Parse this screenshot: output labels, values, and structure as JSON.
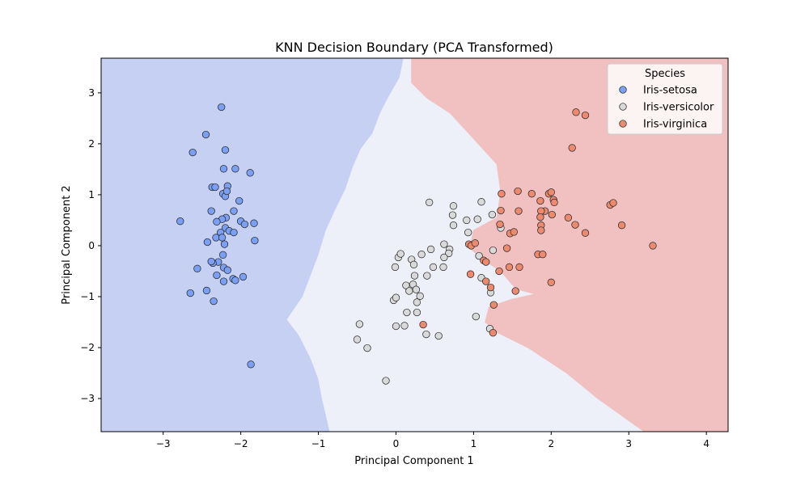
{
  "chart_data": {
    "type": "scatter",
    "title": "KNN Decision Boundary (PCA Transformed)",
    "xlabel": "Principal Component 1",
    "ylabel": "Principal Component 2",
    "xlim": [
      -3.8,
      4.28
    ],
    "ylim": [
      -3.65,
      3.68
    ],
    "xticks": [
      -3,
      -2,
      -1,
      0,
      1,
      2,
      3,
      4
    ],
    "yticks": [
      -3,
      -2,
      -1,
      0,
      1,
      2,
      3
    ],
    "xtick_labels": [
      "−3",
      "−2",
      "−1",
      "0",
      "1",
      "2",
      "3",
      "4"
    ],
    "ytick_labels": [
      "−3",
      "−2",
      "−1",
      "0",
      "1",
      "2",
      "3"
    ],
    "grid": false,
    "legend": {
      "title": "Species",
      "placement": "top-right"
    },
    "decision_regions": [
      {
        "name": "Iris-setosa",
        "color": "#c6d0f2",
        "polygon": [
          [
            -3.8,
            3.68
          ],
          [
            0.1,
            3.68
          ],
          [
            0.05,
            3.3
          ],
          [
            -0.1,
            2.9
          ],
          [
            -0.2,
            2.6
          ],
          [
            -0.3,
            2.2
          ],
          [
            -0.45,
            1.9
          ],
          [
            -0.55,
            1.55
          ],
          [
            -0.65,
            1.1
          ],
          [
            -0.78,
            0.7
          ],
          [
            -0.9,
            0.3
          ],
          [
            -1.0,
            -0.2
          ],
          [
            -1.1,
            -0.6
          ],
          [
            -1.2,
            -1.0
          ],
          [
            -1.4,
            -1.45
          ],
          [
            -1.25,
            -1.75
          ],
          [
            -1.1,
            -2.2
          ],
          [
            -1.0,
            -2.6
          ],
          [
            -0.95,
            -3.0
          ],
          [
            -0.85,
            -3.65
          ],
          [
            -3.8,
            -3.65
          ]
        ]
      },
      {
        "name": "Iris-versicolor",
        "color": "#edf0f9",
        "polygon": [
          [
            0.1,
            3.68
          ],
          [
            0.2,
            3.68
          ],
          [
            0.2,
            3.2
          ],
          [
            0.4,
            2.9
          ],
          [
            0.7,
            2.6
          ],
          [
            1.0,
            2.1
          ],
          [
            1.3,
            1.6
          ],
          [
            1.35,
            1.05
          ],
          [
            1.3,
            0.55
          ],
          [
            1.0,
            0.3
          ],
          [
            0.95,
            -0.05
          ],
          [
            1.15,
            -0.3
          ],
          [
            1.35,
            -0.5
          ],
          [
            1.55,
            -0.85
          ],
          [
            1.8,
            -0.95
          ],
          [
            1.5,
            -1.05
          ],
          [
            1.2,
            -1.2
          ],
          [
            1.15,
            -1.5
          ],
          [
            1.3,
            -1.7
          ],
          [
            1.7,
            -2.0
          ],
          [
            2.2,
            -2.5
          ],
          [
            2.6,
            -3.0
          ],
          [
            3.2,
            -3.65
          ],
          [
            -0.85,
            -3.65
          ],
          [
            -0.95,
            -3.0
          ],
          [
            -1.0,
            -2.6
          ],
          [
            -1.1,
            -2.2
          ],
          [
            -1.25,
            -1.75
          ],
          [
            -1.4,
            -1.45
          ],
          [
            -1.2,
            -1.0
          ],
          [
            -1.1,
            -0.6
          ],
          [
            -1.0,
            -0.2
          ],
          [
            -0.9,
            0.3
          ],
          [
            -0.78,
            0.7
          ],
          [
            -0.65,
            1.1
          ],
          [
            -0.55,
            1.55
          ],
          [
            -0.45,
            1.9
          ],
          [
            -0.3,
            2.2
          ],
          [
            -0.2,
            2.6
          ],
          [
            -0.1,
            2.9
          ],
          [
            0.05,
            3.3
          ]
        ]
      },
      {
        "name": "Iris-virginica",
        "color": "#f0c1c0",
        "polygon": [
          [
            0.2,
            3.68
          ],
          [
            4.28,
            3.68
          ],
          [
            4.28,
            -3.65
          ],
          [
            3.2,
            -3.65
          ],
          [
            2.6,
            -3.0
          ],
          [
            2.2,
            -2.5
          ],
          [
            1.7,
            -2.0
          ],
          [
            1.3,
            -1.7
          ],
          [
            1.15,
            -1.5
          ],
          [
            1.2,
            -1.2
          ],
          [
            1.5,
            -1.05
          ],
          [
            1.8,
            -0.95
          ],
          [
            1.55,
            -0.85
          ],
          [
            1.35,
            -0.5
          ],
          [
            1.15,
            -0.3
          ],
          [
            0.95,
            -0.05
          ],
          [
            1.0,
            0.3
          ],
          [
            1.3,
            0.55
          ],
          [
            1.35,
            1.05
          ],
          [
            1.3,
            1.6
          ],
          [
            1.0,
            2.1
          ],
          [
            0.7,
            2.6
          ],
          [
            0.4,
            2.9
          ],
          [
            0.2,
            3.2
          ]
        ]
      }
    ],
    "series": [
      {
        "name": "Iris-setosa",
        "color": "#7b9ff2",
        "points": [
          [
            -2.25,
            2.72
          ],
          [
            -2.45,
            2.18
          ],
          [
            -2.62,
            1.83
          ],
          [
            -2.2,
            1.88
          ],
          [
            -2.22,
            1.51
          ],
          [
            -2.07,
            1.51
          ],
          [
            -1.88,
            1.43
          ],
          [
            -2.37,
            1.15
          ],
          [
            -2.33,
            1.15
          ],
          [
            -2.17,
            1.17
          ],
          [
            -2.23,
            1.02
          ],
          [
            -2.2,
            0.97
          ],
          [
            -2.18,
            1.07
          ],
          [
            -2.02,
            0.88
          ],
          [
            -2.38,
            0.68
          ],
          [
            -2.09,
            0.68
          ],
          [
            -2.19,
            0.55
          ],
          [
            -2.24,
            0.52
          ],
          [
            -2.31,
            0.47
          ],
          [
            -2.0,
            0.48
          ],
          [
            -1.95,
            0.42
          ],
          [
            -1.83,
            0.44
          ],
          [
            -2.78,
            0.48
          ],
          [
            -2.2,
            0.35
          ],
          [
            -2.26,
            0.26
          ],
          [
            -2.15,
            0.29
          ],
          [
            -2.09,
            0.26
          ],
          [
            -2.32,
            0.16
          ],
          [
            -2.24,
            0.16
          ],
          [
            -2.43,
            0.07
          ],
          [
            -2.21,
            0.03
          ],
          [
            -1.82,
            0.1
          ],
          [
            -2.23,
            -0.18
          ],
          [
            -2.29,
            -0.32
          ],
          [
            -2.36,
            -0.34
          ],
          [
            -2.22,
            -0.43
          ],
          [
            -2.38,
            -0.31
          ],
          [
            -2.17,
            -0.48
          ],
          [
            -2.56,
            -0.45
          ],
          [
            -2.31,
            -0.58
          ],
          [
            -2.1,
            -0.65
          ],
          [
            -2.07,
            -0.68
          ],
          [
            -1.97,
            -0.61
          ],
          [
            -2.22,
            -0.7
          ],
          [
            -2.44,
            -0.88
          ],
          [
            -2.65,
            -0.93
          ],
          [
            -2.35,
            -1.09
          ],
          [
            -1.87,
            -2.33
          ]
        ]
      },
      {
        "name": "Iris-versicolor",
        "color": "#d9d9d9",
        "points": [
          [
            0.43,
            0.85
          ],
          [
            1.1,
            0.86
          ],
          [
            0.74,
            0.78
          ],
          [
            0.73,
            0.6
          ],
          [
            0.91,
            0.5
          ],
          [
            0.93,
            0.26
          ],
          [
            0.74,
            0.4
          ],
          [
            1.05,
            0.52
          ],
          [
            1.24,
            0.61
          ],
          [
            1.35,
            0.35
          ],
          [
            0.62,
            0.03
          ],
          [
            0.69,
            -0.07
          ],
          [
            0.45,
            -0.07
          ],
          [
            0.33,
            -0.17
          ],
          [
            0.68,
            -0.15
          ],
          [
            0.62,
            -0.23
          ],
          [
            0.03,
            -0.23
          ],
          [
            0.06,
            -0.16
          ],
          [
            0.2,
            -0.27
          ],
          [
            0.23,
            -0.37
          ],
          [
            1.25,
            -0.09
          ],
          [
            1.07,
            -0.2
          ],
          [
            -0.01,
            -0.42
          ],
          [
            0.48,
            -0.42
          ],
          [
            0.61,
            -0.42
          ],
          [
            0.24,
            -0.59
          ],
          [
            0.4,
            -0.59
          ],
          [
            1.1,
            -0.63
          ],
          [
            0.13,
            -0.78
          ],
          [
            0.22,
            -0.76
          ],
          [
            1.22,
            -0.92
          ],
          [
            0.26,
            -0.86
          ],
          [
            0.17,
            -0.89
          ],
          [
            0.31,
            -0.99
          ],
          [
            0.27,
            -1.11
          ],
          [
            -0.03,
            -1.07
          ],
          [
            0.0,
            -1.02
          ],
          [
            0.14,
            -1.31
          ],
          [
            0.27,
            -1.31
          ],
          [
            1.03,
            -1.39
          ],
          [
            0.0,
            -1.58
          ],
          [
            0.11,
            -1.57
          ],
          [
            -0.47,
            -1.54
          ],
          [
            0.39,
            -1.74
          ],
          [
            0.55,
            -1.77
          ],
          [
            -0.5,
            -1.84
          ],
          [
            -0.37,
            -2.01
          ],
          [
            1.21,
            -1.63
          ],
          [
            -0.13,
            -2.65
          ]
        ]
      },
      {
        "name": "Iris-virginica",
        "color": "#ec8a6f",
        "points": [
          [
            2.32,
            2.62
          ],
          [
            2.44,
            2.56
          ],
          [
            2.27,
            1.92
          ],
          [
            1.36,
            1.02
          ],
          [
            1.57,
            1.07
          ],
          [
            1.75,
            1.02
          ],
          [
            1.97,
            1.02
          ],
          [
            2.0,
            1.05
          ],
          [
            2.03,
            0.9
          ],
          [
            2.04,
            0.85
          ],
          [
            1.86,
            0.88
          ],
          [
            2.76,
            0.8
          ],
          [
            2.8,
            0.84
          ],
          [
            1.92,
            0.68
          ],
          [
            1.35,
            0.69
          ],
          [
            1.58,
            0.68
          ],
          [
            1.87,
            0.68
          ],
          [
            1.86,
            0.56
          ],
          [
            1.87,
            0.4
          ],
          [
            1.87,
            0.3
          ],
          [
            2.01,
            0.61
          ],
          [
            2.22,
            0.55
          ],
          [
            2.31,
            0.41
          ],
          [
            2.91,
            0.4
          ],
          [
            1.34,
            0.42
          ],
          [
            1.47,
            0.24
          ],
          [
            1.52,
            0.27
          ],
          [
            2.44,
            0.25
          ],
          [
            0.94,
            0.03
          ],
          [
            0.97,
            0.0
          ],
          [
            1.02,
            0.05
          ],
          [
            1.43,
            -0.05
          ],
          [
            1.13,
            -0.29
          ],
          [
            1.16,
            -0.32
          ],
          [
            1.83,
            -0.17
          ],
          [
            1.89,
            -0.17
          ],
          [
            1.33,
            -0.5
          ],
          [
            1.46,
            -0.42
          ],
          [
            1.59,
            -0.42
          ],
          [
            0.96,
            -0.56
          ],
          [
            1.16,
            -0.7
          ],
          [
            1.22,
            -0.82
          ],
          [
            1.54,
            -0.89
          ],
          [
            2.0,
            -0.72
          ],
          [
            1.26,
            -1.16
          ],
          [
            0.35,
            -1.55
          ],
          [
            1.25,
            -1.71
          ],
          [
            3.31,
            0.0
          ]
        ]
      }
    ]
  }
}
